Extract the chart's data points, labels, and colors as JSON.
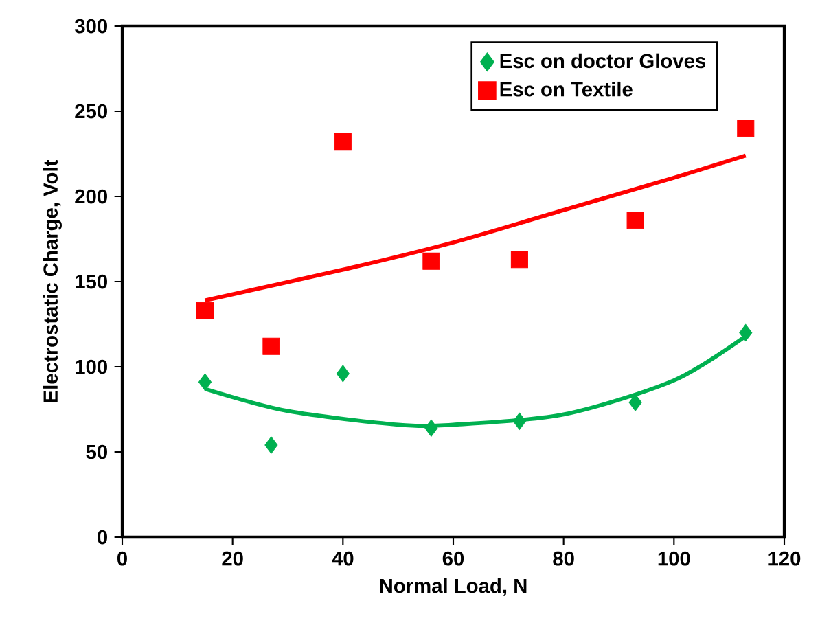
{
  "chart_data": {
    "type": "scatter",
    "xlabel": "Normal Load, N",
    "ylabel": "Electrostatic Charge, Volt",
    "xlim": [
      0,
      120
    ],
    "xticks": [
      0,
      20,
      40,
      60,
      80,
      100,
      120
    ],
    "ylim": [
      0,
      300
    ],
    "yticks": [
      0,
      50,
      100,
      150,
      200,
      250,
      300
    ],
    "grid": false,
    "legend": "top right",
    "series": [
      {
        "name": "Esc on doctor Gloves",
        "color": "#00b050",
        "marker": "diamond",
        "x": [
          15,
          27,
          40,
          56,
          72,
          93,
          113
        ],
        "values": [
          91,
          54,
          96,
          64,
          68,
          79,
          120
        ]
      },
      {
        "name": "Esc on Textile",
        "color": "#ff0000",
        "marker": "square",
        "x": [
          15,
          27,
          40,
          56,
          72,
          93,
          113
        ],
        "values": [
          133,
          112,
          232,
          162,
          163,
          186,
          240
        ]
      },
      {
        "type": "line",
        "color": "#00b050",
        "marker": "none",
        "x": [
          15,
          30,
          50,
          60,
          80,
          100,
          113
        ],
        "values": [
          87,
          74,
          66,
          66,
          72,
          92,
          118
        ]
      },
      {
        "type": "line",
        "color": "#ff0000",
        "marker": "none",
        "x": [
          15,
          40,
          60,
          80,
          100,
          113
        ],
        "values": [
          139,
          157,
          173,
          192,
          211,
          224
        ]
      }
    ]
  }
}
